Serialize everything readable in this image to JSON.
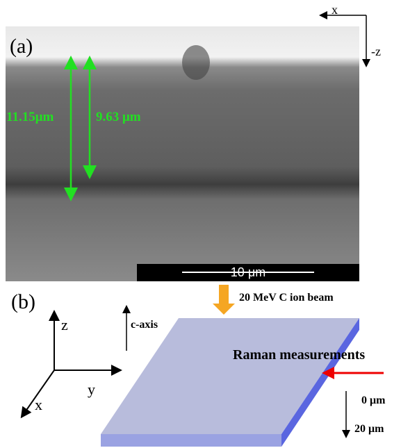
{
  "panel_a": {
    "label": "(a)",
    "axis_x": "x",
    "axis_z": "-z",
    "thickness_1": "11.15μm",
    "thickness_2": "9.63 μm",
    "scale_bar": "10 μm"
  },
  "panel_b": {
    "label": "(b)",
    "beam": "20 MeV C ion beam",
    "c_axis": "c-axis",
    "axis_z": "z",
    "axis_y": "y",
    "axis_x": "x",
    "raman": "Raman measurements",
    "depth_top": "0 μm",
    "depth_bottom": "20 μm"
  }
}
